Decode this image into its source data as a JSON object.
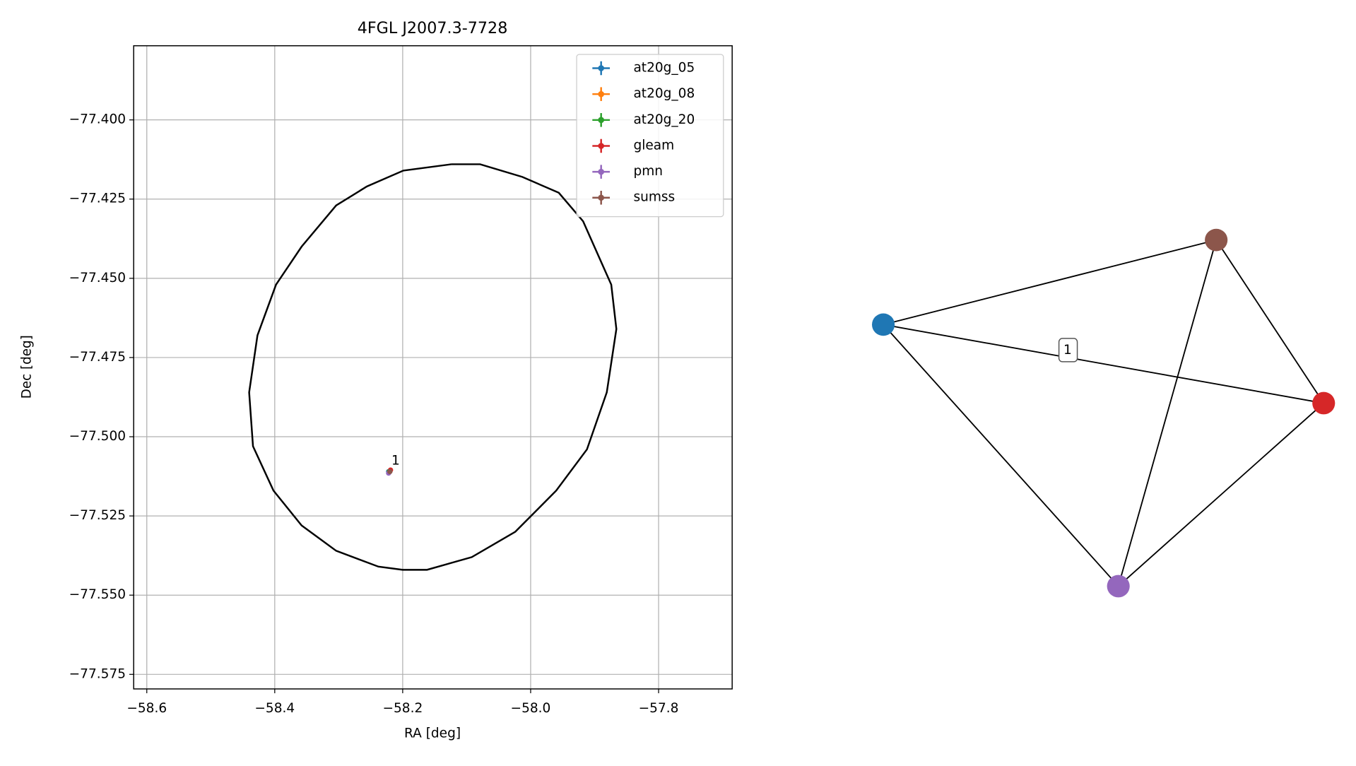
{
  "chart_data": {
    "type": "scatter",
    "title": "4FGL J2007.3-7728",
    "xlabel": "RA [deg]",
    "ylabel": "Dec [deg]",
    "xlim": [
      -58.6205,
      -57.685
    ],
    "ylim": [
      -77.5796,
      -77.3766
    ],
    "xticks": [
      {
        "value": -58.6,
        "label": "−58.6"
      },
      {
        "value": -58.4,
        "label": "−58.4"
      },
      {
        "value": -58.2,
        "label": "−58.2"
      },
      {
        "value": -58.0,
        "label": "−58.0"
      },
      {
        "value": -57.8,
        "label": "−57.8"
      }
    ],
    "yticks": [
      {
        "value": -77.4,
        "label": "−77.400"
      },
      {
        "value": -77.425,
        "label": "−77.425"
      },
      {
        "value": -77.45,
        "label": "−77.450"
      },
      {
        "value": -77.475,
        "label": "−77.475"
      },
      {
        "value": -77.5,
        "label": "−77.500"
      },
      {
        "value": -77.525,
        "label": "−77.525"
      },
      {
        "value": -77.55,
        "label": "−77.550"
      },
      {
        "value": -77.575,
        "label": "−77.575"
      }
    ],
    "grid": true,
    "legend": "upper right",
    "series": [
      {
        "name": "at20g_05",
        "color": "#1f77b4",
        "x": [
          -58.222
        ],
        "y": [
          -77.511
        ]
      },
      {
        "name": "at20g_08",
        "color": "#ff7f0e",
        "x": [
          -58.221
        ],
        "y": [
          -77.511
        ]
      },
      {
        "name": "at20g_20",
        "color": "#2ca02c",
        "x": [
          -58.221
        ],
        "y": [
          -77.511
        ]
      },
      {
        "name": "gleam",
        "color": "#d62728",
        "x": [
          -58.219
        ],
        "y": [
          -77.5105
        ]
      },
      {
        "name": "pmn",
        "color": "#9467bd",
        "x": [
          -58.222
        ],
        "y": [
          -77.5115
        ]
      },
      {
        "name": "sumss",
        "color": "#8c564b",
        "x": [
          -58.22
        ],
        "y": [
          -77.511
        ]
      }
    ],
    "ellipse": {
      "color": "#000000",
      "x": [
        -58.124,
        -58.199,
        -58.256,
        -58.304,
        -58.358,
        -58.398,
        -58.427,
        -58.44,
        -58.434,
        -58.402,
        -58.358,
        -58.304,
        -58.238,
        -58.2,
        -58.162,
        -58.092,
        -58.024,
        -57.96,
        -57.912,
        -57.881,
        -57.866,
        -57.874,
        -57.918,
        -57.956,
        -58.013,
        -58.079,
        -58.124
      ],
      "y": [
        -77.414,
        -77.416,
        -77.421,
        -77.427,
        -77.44,
        -77.452,
        -77.468,
        -77.486,
        -77.503,
        -77.517,
        -77.528,
        -77.536,
        -77.541,
        -77.542,
        -77.542,
        -77.538,
        -77.53,
        -77.517,
        -77.504,
        -77.486,
        -77.466,
        -77.452,
        -77.432,
        -77.423,
        -77.418,
        -77.414,
        -77.414
      ]
    },
    "annotation": {
      "text": "1",
      "x": -58.211,
      "y": -77.5077
    }
  },
  "network": {
    "edge_label": "1"
  }
}
